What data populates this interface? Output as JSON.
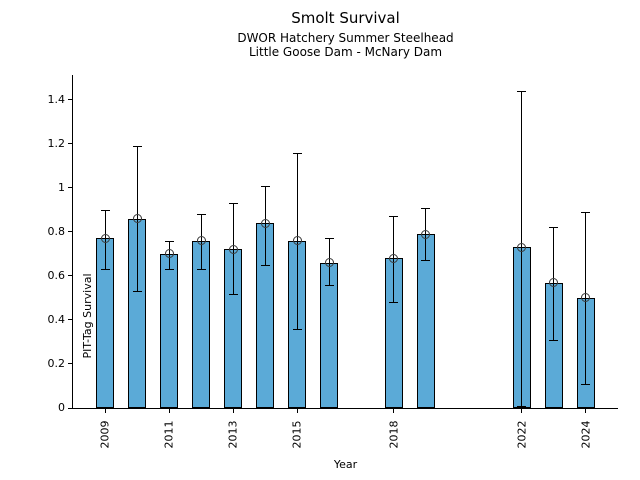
{
  "header": {
    "title": "Smolt Survival",
    "subtitle1": "DWOR Hatchery Summer Steelhead",
    "subtitle2": "Little Goose Dam - McNary Dam"
  },
  "chart_data": {
    "type": "bar",
    "title": "Smolt Survival",
    "subtitles": [
      "DWOR Hatchery Summer Steelhead",
      "Little Goose Dam - McNary Dam"
    ],
    "xlabel": "Year",
    "ylabel": "PIT-Tag Survival",
    "xlim": [
      2008,
      2025
    ],
    "ylim": [
      0,
      1.5125
    ],
    "grid": false,
    "legend": "none",
    "bar_color": "#5BAAD7",
    "bar_edge_color": "#000000",
    "errorbar_color": "#000000",
    "marker": "open-circle",
    "x_ticks": [
      2009,
      2011,
      2013,
      2015,
      2018,
      2022,
      2024
    ],
    "y_ticks": [
      {
        "v": 0,
        "label": "0"
      },
      {
        "v": 0.2,
        "label": "0.2"
      },
      {
        "v": 0.4,
        "label": "0.4"
      },
      {
        "v": 0.6,
        "label": "0.6"
      },
      {
        "v": 0.8,
        "label": "0.8"
      },
      {
        "v": 1,
        "label": "1"
      },
      {
        "v": 1.2,
        "label": "1.2"
      },
      {
        "v": 1.4,
        "label": "1.4"
      }
    ],
    "series": [
      {
        "year": 2009,
        "value": 0.77,
        "ci_low": 0.63,
        "ci_high": 0.9
      },
      {
        "year": 2010,
        "value": 0.86,
        "ci_low": 0.53,
        "ci_high": 1.19
      },
      {
        "year": 2011,
        "value": 0.7,
        "ci_low": 0.63,
        "ci_high": 0.76
      },
      {
        "year": 2012,
        "value": 0.76,
        "ci_low": 0.63,
        "ci_high": 0.88
      },
      {
        "year": 2013,
        "value": 0.72,
        "ci_low": 0.52,
        "ci_high": 0.93
      },
      {
        "year": 2014,
        "value": 0.84,
        "ci_low": 0.65,
        "ci_high": 1.01
      },
      {
        "year": 2015,
        "value": 0.76,
        "ci_low": 0.36,
        "ci_high": 1.16
      },
      {
        "year": 2016,
        "value": 0.66,
        "ci_low": 0.56,
        "ci_high": 0.77
      },
      {
        "year": 2018,
        "value": 0.68,
        "ci_low": 0.48,
        "ci_high": 0.87
      },
      {
        "year": 2019,
        "value": 0.79,
        "ci_low": 0.67,
        "ci_high": 0.91
      },
      {
        "year": 2022,
        "value": 0.73,
        "ci_low": 0.01,
        "ci_high": 1.44
      },
      {
        "year": 2023,
        "value": 0.57,
        "ci_low": 0.31,
        "ci_high": 0.82
      },
      {
        "year": 2024,
        "value": 0.5,
        "ci_low": 0.11,
        "ci_high": 0.89
      }
    ]
  }
}
